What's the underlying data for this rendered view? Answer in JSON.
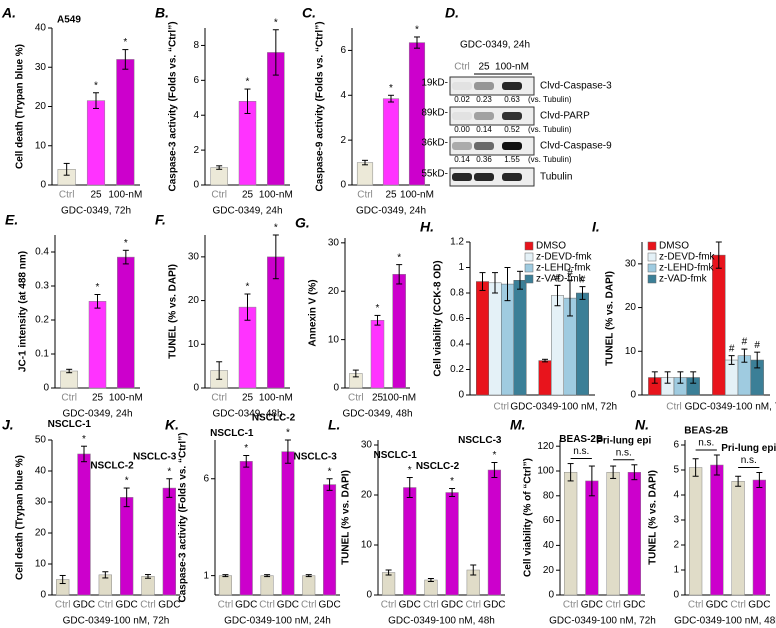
{
  "chart_data": [
    {
      "type": "bar",
      "panel_label": "A.",
      "subtitle": "A549",
      "ylabel": "Cell death (Trypan blue %)",
      "xlabel": "GDC-0349, 72h",
      "categories": [
        "Ctrl",
        "25",
        "100-nM"
      ],
      "values": [
        4,
        21.5,
        32
      ],
      "errors": [
        1.5,
        2,
        2.5
      ],
      "colors": [
        "#ece9d8",
        "#ff33ff",
        "#cc00cc"
      ],
      "annotations": [
        null,
        "*",
        "*"
      ],
      "ylim": [
        0,
        40
      ],
      "yticks": [
        0,
        10,
        20,
        30,
        40
      ]
    },
    {
      "type": "bar",
      "panel_label": "B.",
      "ylabel": "Caspase-3 activity (Folds vs. “Ctrl”)",
      "xlabel": "GDC-0349, 24h",
      "categories": [
        "Ctrl",
        "25",
        "100-nM"
      ],
      "values": [
        1,
        4.8,
        7.6
      ],
      "errors": [
        0.1,
        0.7,
        1.3
      ],
      "colors": [
        "#ece9d8",
        "#ff33ff",
        "#cc00cc"
      ],
      "annotations": [
        null,
        "*",
        "*"
      ],
      "ylim": [
        0,
        9
      ],
      "yticks": [
        0,
        2,
        4,
        6,
        8
      ]
    },
    {
      "type": "bar",
      "panel_label": "C.",
      "ylabel": "Caspase-9 activity (Folds vs. “Ctrl”)",
      "xlabel": "GDC-0349, 24h",
      "categories": [
        "Ctrl",
        "25",
        "100-nM"
      ],
      "values": [
        1,
        3.85,
        6.35
      ],
      "errors": [
        0.1,
        0.15,
        0.25
      ],
      "colors": [
        "#ece9d8",
        "#ff33ff",
        "#cc00cc"
      ],
      "annotations": [
        null,
        "*",
        "*"
      ],
      "ylim": [
        0,
        7
      ],
      "yticks": [
        0,
        2,
        4,
        6
      ]
    },
    {
      "type": "bar",
      "panel_label": "E.",
      "ylabel": "JC-1 intensity (at 488 nm)",
      "xlabel": "GDC-0349, 24h",
      "categories": [
        "Ctrl",
        "25",
        "100-nM"
      ],
      "values": [
        0.05,
        0.255,
        0.385
      ],
      "errors": [
        0.005,
        0.02,
        0.02
      ],
      "colors": [
        "#ece9d8",
        "#ff33ff",
        "#cc00cc"
      ],
      "annotations": [
        null,
        "*",
        "*"
      ],
      "ylim": [
        0,
        0.45
      ],
      "yticks": [
        0,
        0.1,
        0.2,
        0.3,
        0.4
      ]
    },
    {
      "type": "bar",
      "panel_label": "F.",
      "ylabel": "TUNEL (% vs. DAPI)",
      "xlabel": "GDC-0349, 48h",
      "categories": [
        "Ctrl",
        "25",
        "100-nM"
      ],
      "values": [
        4,
        18.5,
        30
      ],
      "errors": [
        2,
        3,
        5
      ],
      "colors": [
        "#ece9d8",
        "#ff33ff",
        "#cc00cc"
      ],
      "annotations": [
        null,
        "*",
        "*"
      ],
      "ylim": [
        0,
        35
      ],
      "yticks": [
        0,
        10,
        20,
        30
      ]
    },
    {
      "type": "bar",
      "panel_label": "G.",
      "ylabel": "Annexin V (%)",
      "xlabel": "GDC-0349, 48h",
      "categories": [
        "Ctrl",
        "25",
        "100-nM"
      ],
      "values": [
        3,
        14,
        23.5
      ],
      "errors": [
        0.7,
        1,
        2
      ],
      "colors": [
        "#ece9d8",
        "#ff33ff",
        "#cc00cc"
      ],
      "annotations": [
        null,
        "*",
        "*"
      ],
      "ylim": [
        0,
        31
      ],
      "yticks": [
        0,
        10,
        20,
        30
      ]
    },
    {
      "type": "bar",
      "panel_label": "H.",
      "ylabel": "Cell viability (CCK-8 OD)",
      "legend": "upper right",
      "categories": [
        "Ctrl",
        "GDC-0349-100 nM, 72h"
      ],
      "series": [
        {
          "name": "DMSO",
          "color": "#e8141c",
          "values": [
            0.89,
            0.27
          ],
          "errors": [
            0.07,
            0.01
          ],
          "annotations": [
            null,
            null
          ]
        },
        {
          "name": "z-DEVD-fmk",
          "color": "#e4f1f7",
          "values": [
            0.88,
            0.78
          ],
          "errors": [
            0.08,
            0.08
          ],
          "annotations": [
            null,
            "#"
          ]
        },
        {
          "name": "z-LEHD-fmk",
          "color": "#9fcbe0",
          "values": [
            0.87,
            0.76
          ],
          "errors": [
            0.13,
            0.14
          ],
          "annotations": [
            null,
            "#"
          ]
        },
        {
          "name": "z-VAD-fmk",
          "color": "#3b7f97",
          "values": [
            0.9,
            0.8
          ],
          "errors": [
            0.07,
            0.05
          ],
          "annotations": [
            null,
            "#"
          ]
        }
      ],
      "ylim": [
        0,
        1.2
      ],
      "yticks": [
        0,
        0.2,
        0.4,
        0.6,
        0.8,
        1,
        1.2
      ]
    },
    {
      "type": "bar",
      "panel_label": "I.",
      "ylabel": "TUNEL (% vs. DAPI)",
      "legend": "upper left",
      "categories": [
        "Ctrl",
        "GDC-0349-100 nM, 72h"
      ],
      "series": [
        {
          "name": "DMSO",
          "color": "#e8141c",
          "values": [
            4,
            32
          ],
          "errors": [
            1.3,
            3
          ],
          "annotations": [
            null,
            null
          ]
        },
        {
          "name": "z-DEVD-fmk",
          "color": "#e4f1f7",
          "values": [
            4,
            8
          ],
          "errors": [
            1.3,
            1
          ],
          "annotations": [
            null,
            "#"
          ]
        },
        {
          "name": "z-LEHD-fmk",
          "color": "#9fcbe0",
          "values": [
            4,
            9
          ],
          "errors": [
            1.3,
            1.5
          ],
          "annotations": [
            null,
            "#"
          ]
        },
        {
          "name": "z-VAD-fmk",
          "color": "#3b7f97",
          "values": [
            4,
            8
          ],
          "errors": [
            1.3,
            1.8
          ],
          "annotations": [
            null,
            "#"
          ]
        }
      ],
      "ylim": [
        0,
        35
      ],
      "yticks": [
        0,
        10,
        20,
        30
      ]
    },
    {
      "type": "bar",
      "panel_label": "J.",
      "ylabel": "Cell death (Trypan blue %)",
      "xlabel": "GDC-0349-100 nM, 72h",
      "categories": [
        "Ctrl",
        "GDC",
        "Ctrl",
        "GDC",
        "Ctrl",
        "GDC"
      ],
      "group_labels": [
        "NSCLC-1",
        "NSCLC-2",
        "NSCLC-3"
      ],
      "values": [
        5,
        45.5,
        6.5,
        31.5,
        6,
        34.5
      ],
      "errors": [
        1.3,
        2.5,
        1,
        3,
        0.6,
        3
      ],
      "colors": [
        "#e0dcc8",
        "#cc00cc",
        "#e0dcc8",
        "#cc00cc",
        "#e0dcc8",
        "#cc00cc"
      ],
      "annotations": [
        null,
        "*",
        null,
        "*",
        null,
        "*"
      ],
      "ylim": [
        0,
        50
      ],
      "yticks": [
        0,
        10,
        20,
        30,
        40,
        50
      ]
    },
    {
      "type": "bar",
      "panel_label": "K.",
      "ylabel": "Caspase-3 activity (Folds vs. “Ctrl”)",
      "xlabel": "GDC-0349-100 nM, 24h",
      "categories": [
        "Ctrl",
        "GDC",
        "Ctrl",
        "GDC",
        "Ctrl",
        "GDC"
      ],
      "group_labels": [
        "NSCLC-1",
        "NSCLC-2",
        "NSCLC-3"
      ],
      "values": [
        1,
        6.9,
        1,
        7.4,
        1,
        5.7
      ],
      "errors": [
        0.05,
        0.3,
        0.05,
        0.6,
        0.05,
        0.3
      ],
      "colors": [
        "#e0dcc8",
        "#cc00cc",
        "#e0dcc8",
        "#cc00cc",
        "#e0dcc8",
        "#cc00cc"
      ],
      "annotations": [
        null,
        "*",
        null,
        "*",
        null,
        "*"
      ],
      "ylim": [
        0,
        8
      ],
      "yticks": [
        1,
        6
      ]
    },
    {
      "type": "bar",
      "panel_label": "L.",
      "ylabel": "TUNEL (% vs. DAPI)",
      "xlabel": "GDC-0349-100 nM, 48h",
      "categories": [
        "Ctrl",
        "GDC",
        "Ctrl",
        "GDC",
        "Ctrl",
        "GDC"
      ],
      "group_labels": [
        "NSCLC-1",
        "NSCLC-2",
        "NSCLC-3"
      ],
      "values": [
        4.5,
        21.5,
        3,
        20.5,
        5,
        25
      ],
      "errors": [
        0.5,
        2,
        0.3,
        0.8,
        1,
        1.5
      ],
      "colors": [
        "#e0dcc8",
        "#cc00cc",
        "#e0dcc8",
        "#cc00cc",
        "#e0dcc8",
        "#cc00cc"
      ],
      "annotations": [
        null,
        "*",
        null,
        "*",
        null,
        "*"
      ],
      "ylim": [
        0,
        31
      ],
      "yticks": [
        0,
        10,
        20,
        30
      ]
    },
    {
      "type": "bar",
      "panel_label": "M.",
      "ylabel": "Cell viability (% of “Ctrl”)",
      "xlabel": "GDC-0349-100 nM, 72h",
      "categories": [
        "Ctrl",
        "GDC",
        "Ctrl",
        "GDC"
      ],
      "group_labels": [
        "BEAS-2B",
        "Pri-lung epi"
      ],
      "group_notes": [
        "n.s.",
        "n.s."
      ],
      "values": [
        99,
        92,
        99,
        99
      ],
      "errors": [
        7,
        12,
        5,
        6
      ],
      "colors": [
        "#e0dcc8",
        "#cc00cc",
        "#e0dcc8",
        "#cc00cc"
      ],
      "ylim": [
        0,
        125
      ],
      "yticks": [
        0,
        20,
        40,
        60,
        80,
        100,
        120
      ]
    },
    {
      "type": "bar",
      "panel_label": "N.",
      "ylabel": "TUNEL (% vs. DAPI)",
      "xlabel": "GDC-0349-100 nM, 48h",
      "categories": [
        "Ctrl",
        "GDC",
        "Ctrl",
        "GDC"
      ],
      "group_labels": [
        "BEAS-2B",
        "Pri-lung epi"
      ],
      "group_notes": [
        "n.s.",
        "n.s."
      ],
      "values": [
        5.1,
        5.2,
        4.55,
        4.6
      ],
      "errors": [
        0.35,
        0.4,
        0.2,
        0.3
      ],
      "colors": [
        "#e0dcc8",
        "#cc00cc",
        "#e0dcc8",
        "#cc00cc"
      ],
      "ylim": [
        0,
        6.2
      ],
      "yticks": [
        0,
        1,
        2,
        3,
        4,
        5,
        6
      ]
    }
  ],
  "blot": {
    "panel_label": "D.",
    "treatment": "GDC-0349, 24h",
    "lanes": [
      "Ctrl",
      "25",
      "100-nM"
    ],
    "bands": [
      {
        "size": "19kD-",
        "name": "Clvd-Caspase-3",
        "quant": [
          "0.02",
          "0.23",
          "0.63"
        ],
        "quant_note": "(vs. Tubulin)"
      },
      {
        "size": "89kD-",
        "name": "Clvd-PARP",
        "quant": [
          "0.00",
          "0.14",
          "0.52"
        ],
        "quant_note": "(vs. Tubulin)"
      },
      {
        "size": "36kD-",
        "name": "Clvd-Caspase-9",
        "quant": [
          "0.14",
          "0.36",
          "1.55"
        ],
        "quant_note": "(vs. Tubulin)"
      },
      {
        "size": "55kD-",
        "name": "Tubulin"
      }
    ]
  }
}
